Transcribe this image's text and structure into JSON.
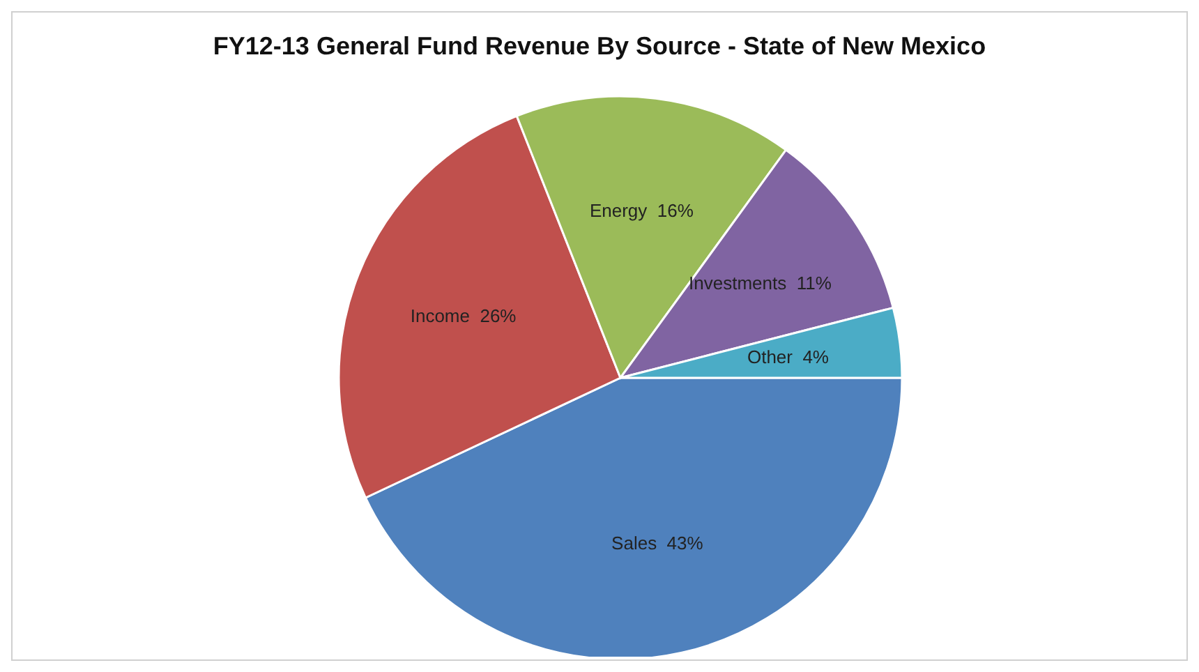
{
  "chart_data": {
    "type": "pie",
    "title": "FY12-13 General Fund Revenue By Source - State of New Mexico",
    "categories": [
      "Sales",
      "Income",
      "Energy",
      "Investments",
      "Other"
    ],
    "values": [
      43,
      26,
      16,
      11,
      4
    ],
    "value_labels": [
      "43%",
      "26%",
      "16%",
      "11%",
      "4%"
    ],
    "colors": [
      "#4f81bd",
      "#c0504d",
      "#9bbb59",
      "#8064a2",
      "#4bacc6"
    ],
    "legend": false
  }
}
